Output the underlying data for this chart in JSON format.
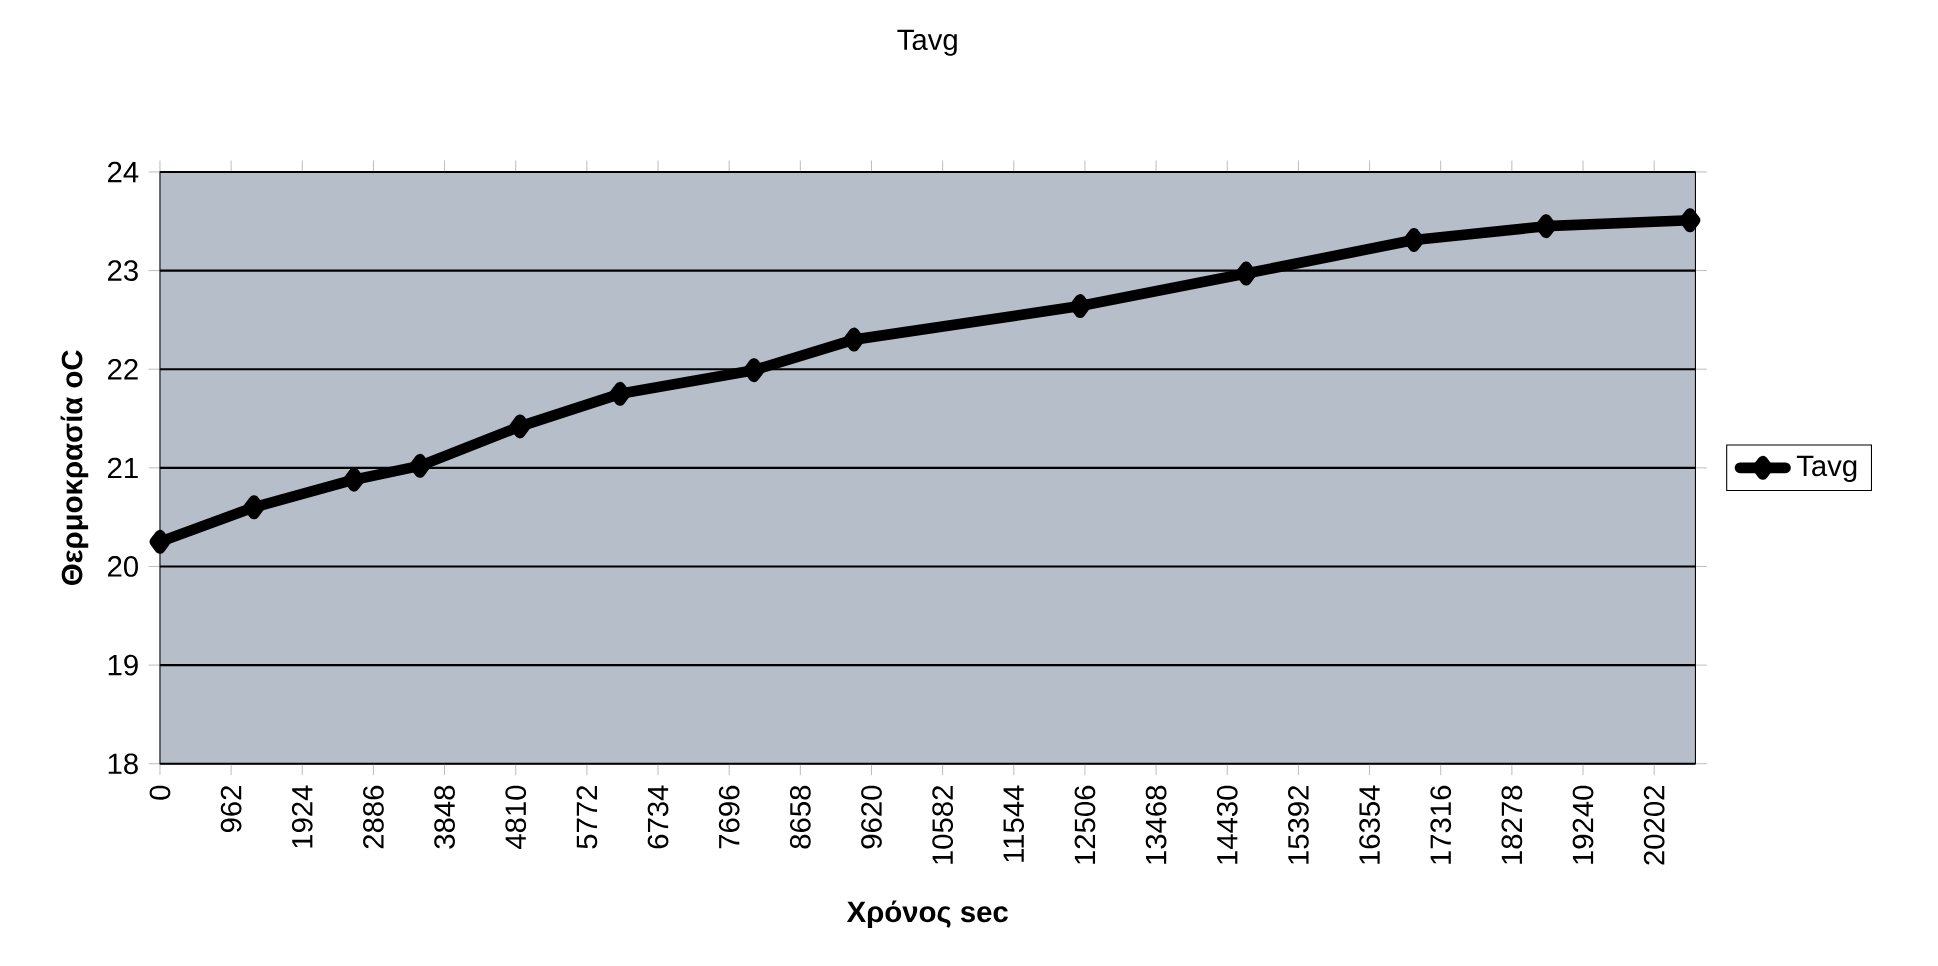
{
  "chart_data": {
    "type": "line",
    "title": "Tavg",
    "xlabel": "Χρόνος sec",
    "ylabel": "Θερμοκρασία oC",
    "x": [
      0,
      1271,
      2623,
      3515,
      4868,
      6220,
      8031,
      9383,
      12440,
      14685,
      16954,
      18740,
      20686
    ],
    "series": [
      {
        "name": "Tavg",
        "color": "#000000",
        "values": [
          20.25,
          20.6,
          20.88,
          21.02,
          21.42,
          21.75,
          21.99,
          22.3,
          22.64,
          22.97,
          23.31,
          23.45,
          23.51
        ]
      }
    ],
    "xlim": [
      0,
      20760
    ],
    "xticks": [
      0,
      962,
      1924,
      2886,
      3848,
      4810,
      5772,
      6734,
      7696,
      8658,
      9620,
      10582,
      11544,
      12506,
      13468,
      14430,
      15392,
      16354,
      17316,
      18278,
      19240,
      20202
    ],
    "ylim": [
      18,
      24
    ],
    "yticks": [
      18,
      19,
      20,
      21,
      22,
      23,
      24
    ],
    "grid": "y",
    "legend": "right",
    "marker": "diamond",
    "line_style": "solid"
  }
}
